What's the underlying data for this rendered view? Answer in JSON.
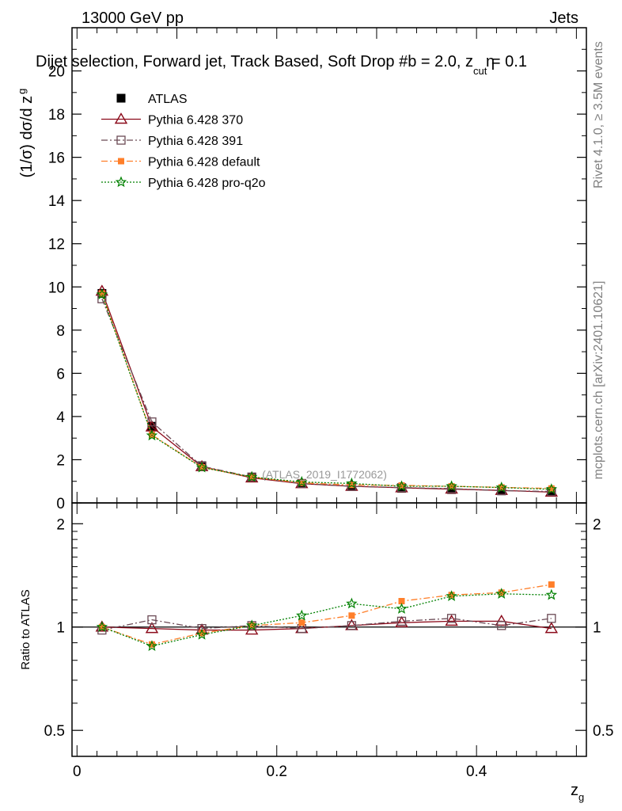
{
  "header": {
    "energy": "13000 GeV pp",
    "process": "Jets",
    "title": "Dijet selection, Forward jet, Track Based, Soft Drop #b = 2.0, z",
    "title_sub": "cut",
    "title_tail": " = 0.1",
    "title_eta": "η",
    "watermark": "(ATLAS_2019_I1772062)",
    "side_rivet": "Rivet 4.1.0, ≥ 3.5M events",
    "side_mcplots": "mcplots.cern.ch [arXiv:2401.10621]"
  },
  "chart_data": [
    {
      "type": "line",
      "ylabel": "(1/σ) dσ/d z",
      "ylabel_sub": "g",
      "ylim": [
        0,
        22
      ],
      "yticks": [
        0,
        2,
        4,
        6,
        8,
        10,
        12,
        14,
        16,
        18,
        20
      ],
      "ytick_labels": [
        "0",
        "2",
        "4",
        "6",
        "8",
        "10",
        "12",
        "14",
        "16",
        "18",
        "20"
      ],
      "xlim": [
        -0.005,
        0.51
      ],
      "x": [
        0.025,
        0.075,
        0.125,
        0.175,
        0.225,
        0.275,
        0.325,
        0.375,
        0.425,
        0.475
      ],
      "series": [
        {
          "name": "ATLAS",
          "color": "#000000",
          "marker": "square-filled",
          "style": "none",
          "values": [
            9.7,
            3.55,
            1.72,
            1.18,
            0.9,
            0.76,
            0.68,
            0.62,
            0.56,
            0.5
          ]
        },
        {
          "name": "Pythia 6.428 370",
          "color": "#8b0a1a",
          "marker": "triangle-open",
          "style": "solid",
          "values": [
            9.8,
            3.52,
            1.68,
            1.16,
            0.89,
            0.77,
            0.7,
            0.64,
            0.58,
            0.5
          ]
        },
        {
          "name": "Pythia 6.428 391",
          "color": "#6b4a55",
          "marker": "square-open",
          "style": "dashdot",
          "values": [
            9.45,
            3.75,
            1.7,
            1.2,
            0.9,
            0.77,
            0.71,
            0.66,
            0.57,
            0.53
          ]
        },
        {
          "name": "Pythia 6.428 default",
          "color": "#ff7f2a",
          "marker": "square-filled-small",
          "style": "dashdot",
          "values": [
            9.7,
            3.15,
            1.65,
            1.19,
            0.93,
            0.83,
            0.81,
            0.77,
            0.72,
            0.67
          ]
        },
        {
          "name": "Pythia 6.428 pro-q2o",
          "color": "#008000",
          "marker": "star",
          "style": "dotted",
          "values": [
            9.65,
            3.12,
            1.64,
            1.2,
            0.97,
            0.9,
            0.77,
            0.77,
            0.71,
            0.63
          ]
        }
      ]
    },
    {
      "type": "line",
      "ylabel": "Ratio to ATLAS",
      "xlabel": "z",
      "xlabel_sub": "g",
      "yscale": "log",
      "ylim": [
        0.42,
        2.3
      ],
      "yticks": [
        0.5,
        1,
        2
      ],
      "ytick_labels": [
        "0.5",
        "1",
        "2"
      ],
      "xticks": [
        0,
        0.2,
        0.4
      ],
      "xtick_labels": [
        "0",
        "0.2",
        "0.4"
      ],
      "xlim": [
        -0.005,
        0.51
      ],
      "x": [
        0.025,
        0.075,
        0.125,
        0.175,
        0.225,
        0.275,
        0.325,
        0.375,
        0.425,
        0.475
      ],
      "series": [
        {
          "name": "Pythia 6.428 370",
          "color": "#8b0a1a",
          "marker": "triangle-open",
          "style": "solid",
          "values": [
            1.0,
            0.99,
            0.98,
            0.98,
            0.99,
            1.01,
            1.03,
            1.04,
            1.04,
            0.99
          ]
        },
        {
          "name": "Pythia 6.428 391",
          "color": "#6b4a55",
          "marker": "square-open",
          "style": "dashdot",
          "values": [
            0.98,
            1.05,
            0.99,
            1.01,
            0.99,
            1.01,
            1.04,
            1.06,
            1.01,
            1.06
          ]
        },
        {
          "name": "Pythia 6.428 default",
          "color": "#ff7f2a",
          "marker": "square-filled-small",
          "style": "dashdot",
          "values": [
            1.0,
            0.89,
            0.96,
            1.01,
            1.03,
            1.08,
            1.19,
            1.24,
            1.26,
            1.33
          ]
        },
        {
          "name": "Pythia 6.428 pro-q2o",
          "color": "#008000",
          "marker": "star",
          "style": "dotted",
          "values": [
            1.0,
            0.88,
            0.95,
            1.01,
            1.08,
            1.17,
            1.13,
            1.23,
            1.25,
            1.24
          ]
        }
      ]
    }
  ]
}
